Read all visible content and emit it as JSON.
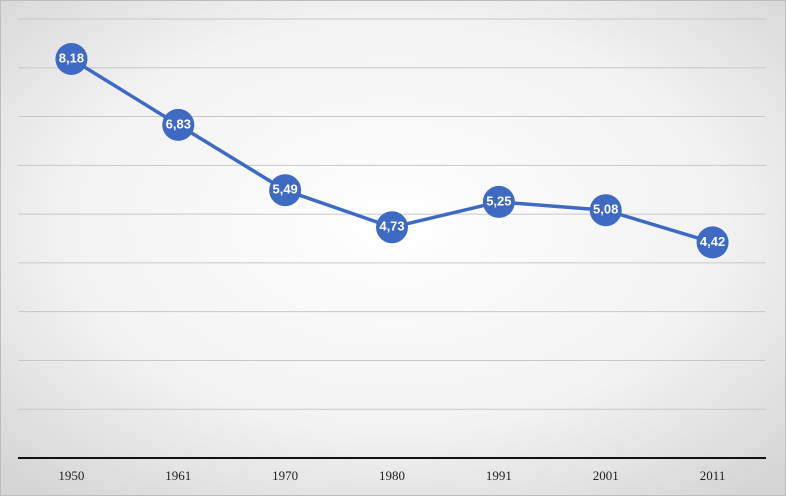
{
  "chart_data": {
    "type": "line",
    "categories": [
      "1950",
      "1961",
      "1970",
      "1980",
      "1991",
      "2001",
      "2011"
    ],
    "values": [
      8.18,
      6.83,
      5.49,
      4.73,
      5.25,
      5.08,
      4.42
    ],
    "value_labels": [
      "8,18",
      "6,83",
      "5,49",
      "4,73",
      "5,25",
      "5,08",
      "4,42"
    ],
    "color": "#3f6ac4",
    "ylim": [
      0,
      9
    ],
    "yticks": [
      0,
      1,
      2,
      3,
      4,
      5,
      6,
      7,
      8,
      9
    ],
    "grid": true
  }
}
